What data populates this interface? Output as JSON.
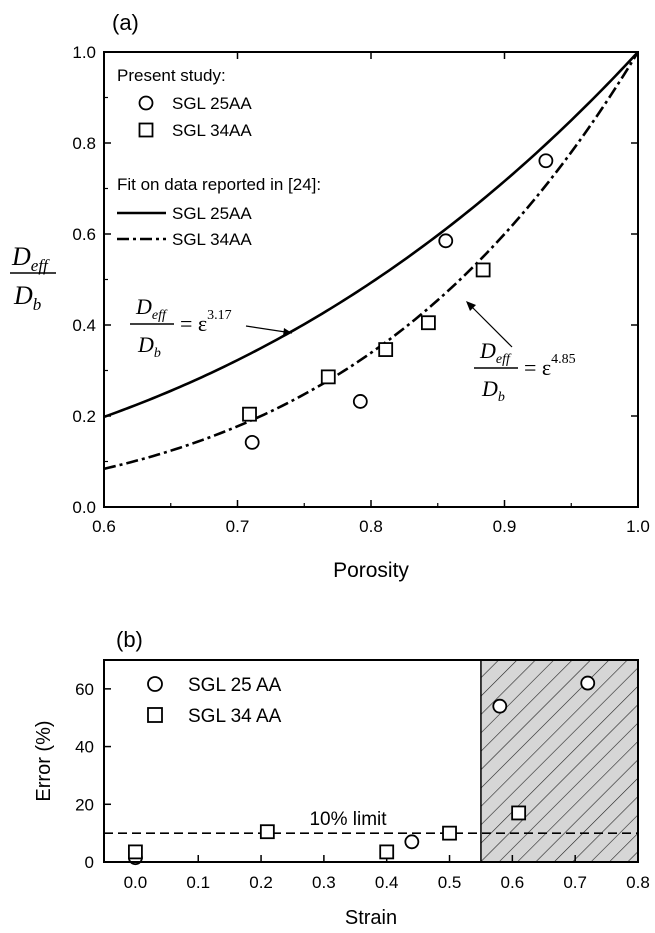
{
  "chart_data": [
    {
      "panel_label": "(a)",
      "type": "scatter",
      "xlabel": "Porosity",
      "ylabel_numerator": "D",
      "ylabel_numerator_sub": "eff",
      "ylabel_denominator": "D",
      "ylabel_denominator_sub": "b",
      "xlim": [
        0.6,
        1.0
      ],
      "ylim": [
        0.0,
        1.0
      ],
      "xticks": [
        "0.6",
        "0.7",
        "0.8",
        "0.9",
        "1.0"
      ],
      "yticks": [
        "0.0",
        "0.2",
        "0.4",
        "0.6",
        "0.8",
        "1.0"
      ],
      "legend": {
        "header1": "Present study:",
        "header2": "Fit on data reported in [24]:",
        "placement": "top-left"
      },
      "series": [
        {
          "name": "SGL 25AA",
          "group": "Present study",
          "kind": "points",
          "marker": "circle",
          "x": [
            0.711,
            0.792,
            0.856,
            0.931
          ],
          "y": [
            0.142,
            0.232,
            0.585,
            0.761
          ]
        },
        {
          "name": "SGL 34AA",
          "group": "Present study",
          "kind": "points",
          "marker": "square",
          "x": [
            0.709,
            0.768,
            0.811,
            0.843,
            0.884
          ],
          "y": [
            0.204,
            0.286,
            0.346,
            0.405,
            0.521
          ]
        },
        {
          "name": "SGL 25AA",
          "group": "Fit",
          "kind": "curve",
          "style": "solid",
          "exponent": 3.17
        },
        {
          "name": "SGL 34AA",
          "group": "Fit",
          "kind": "curve",
          "style": "dash-dot",
          "exponent": 4.85
        }
      ],
      "annotations": [
        {
          "lhs_num": "D",
          "lhs_num_sub": "eff",
          "lhs_den": "D",
          "lhs_den_sub": "b",
          "rhs": "= ε",
          "exponent": "3.17"
        },
        {
          "lhs_num": "D",
          "lhs_num_sub": "eff",
          "lhs_den": "D",
          "lhs_den_sub": "b",
          "rhs": "= ε",
          "exponent": "4.85"
        }
      ]
    },
    {
      "panel_label": "(b)",
      "type": "scatter",
      "xlabel": "Strain",
      "ylabel": "Error (%)",
      "xlim": [
        -0.05,
        0.8
      ],
      "ylim": [
        0,
        70
      ],
      "xticks": [
        "0.0",
        "0.1",
        "0.2",
        "0.3",
        "0.4",
        "0.5",
        "0.6",
        "0.7",
        "0.8"
      ],
      "yticks": [
        "0",
        "20",
        "40",
        "60"
      ],
      "legend": {
        "placement": "top-left"
      },
      "reference_line": {
        "y": 10,
        "label": "10% limit",
        "style": "dashed"
      },
      "shaded_region": {
        "x_from": 0.55,
        "x_to": 0.8,
        "pattern": "hatched"
      },
      "series": [
        {
          "name": "SGL 25 AA",
          "marker": "circle",
          "x": [
            0.0,
            0.44,
            0.58,
            0.72
          ],
          "y": [
            1.5,
            7,
            54,
            62
          ]
        },
        {
          "name": "SGL 34 AA",
          "marker": "square",
          "x": [
            0.0,
            0.21,
            0.4,
            0.5,
            0.61
          ],
          "y": [
            3.5,
            10.5,
            3.5,
            10,
            17
          ]
        }
      ]
    }
  ]
}
